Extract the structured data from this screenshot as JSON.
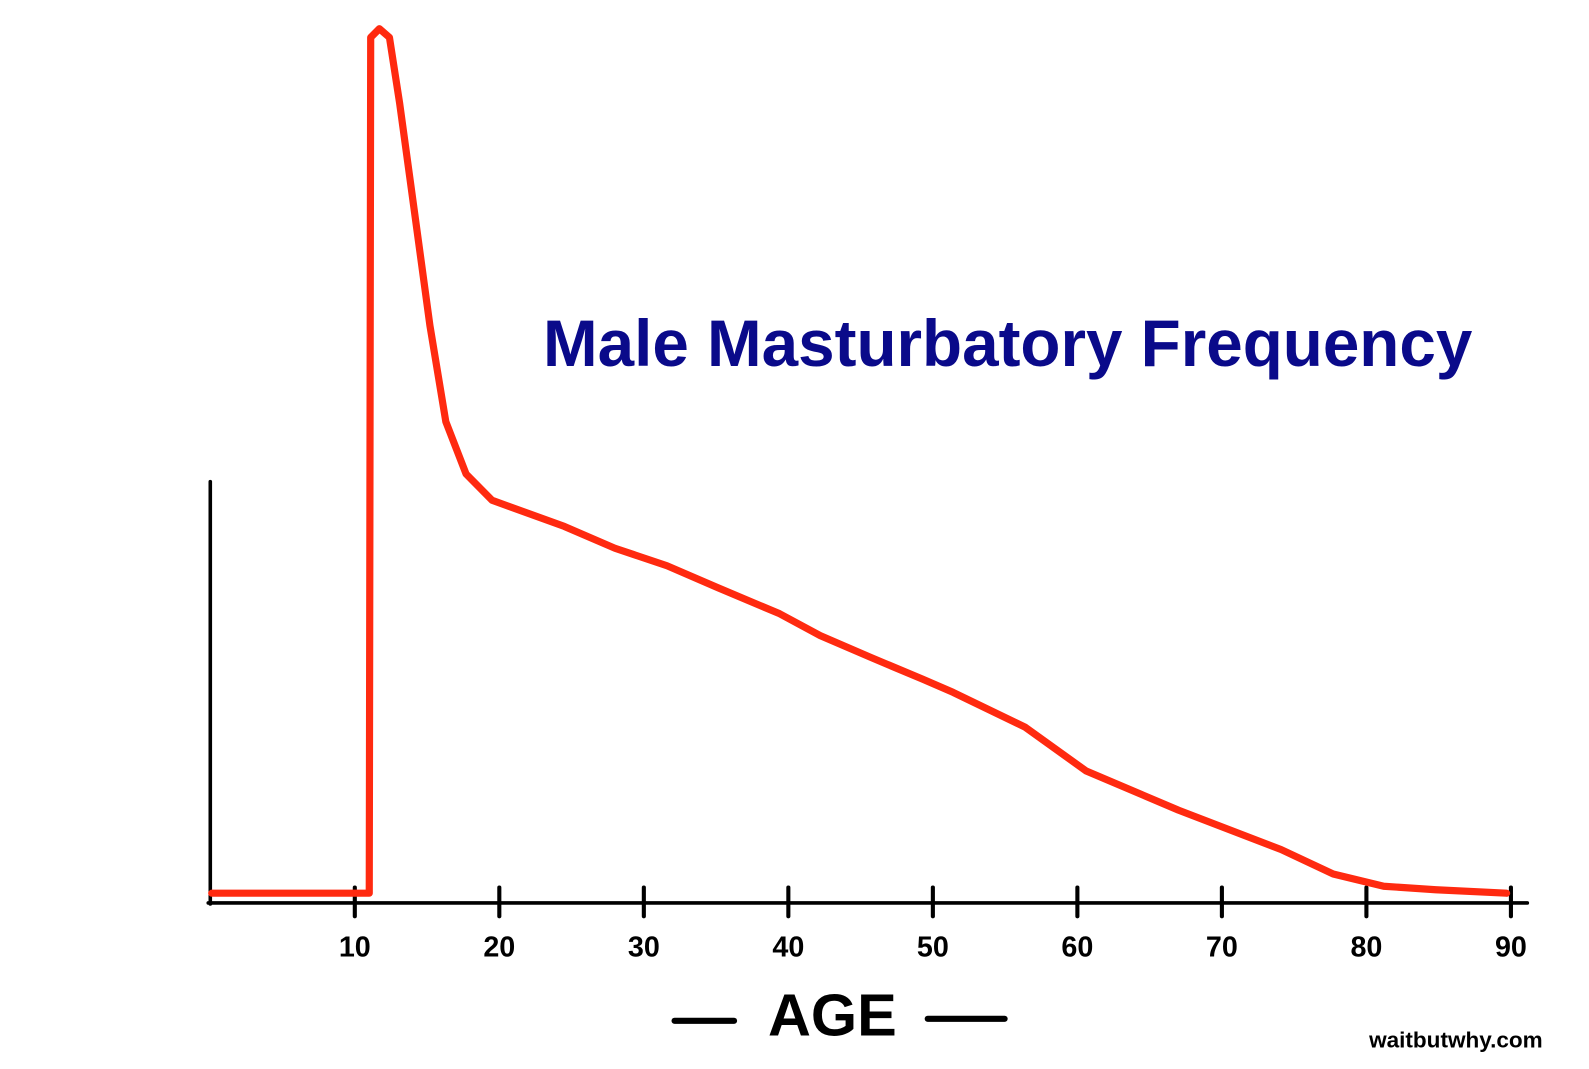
{
  "chart_data": {
    "type": "line",
    "title": "Male Masturbatory Frequency",
    "x_label": "AGE",
    "credit": "waitbutwhy.com",
    "color": "#ff2a10",
    "xlim": [
      0,
      91
    ],
    "ylim": [
      0,
      100
    ],
    "xticks": [
      10,
      20,
      30,
      40,
      50,
      60,
      70,
      80,
      90
    ],
    "x": [
      0.1,
      11.0,
      11.1,
      11.7,
      12.4,
      13.1,
      13.8,
      15.2,
      16.3,
      17.7,
      19.5,
      24.5,
      28,
      31.6,
      35.1,
      39.4,
      42.2,
      45.7,
      49.3,
      51.4,
      56.4,
      60.6,
      67,
      74.1,
      77.7,
      81.2,
      84.8,
      89.7
    ],
    "values": [
      1,
      1,
      99,
      100,
      99,
      91.5,
      83,
      66,
      55,
      49,
      46,
      43,
      40.5,
      38.5,
      36,
      33,
      30.5,
      28,
      25.5,
      24,
      20,
      15,
      10.5,
      6,
      3.2,
      1.8,
      1.4,
      1
    ]
  }
}
